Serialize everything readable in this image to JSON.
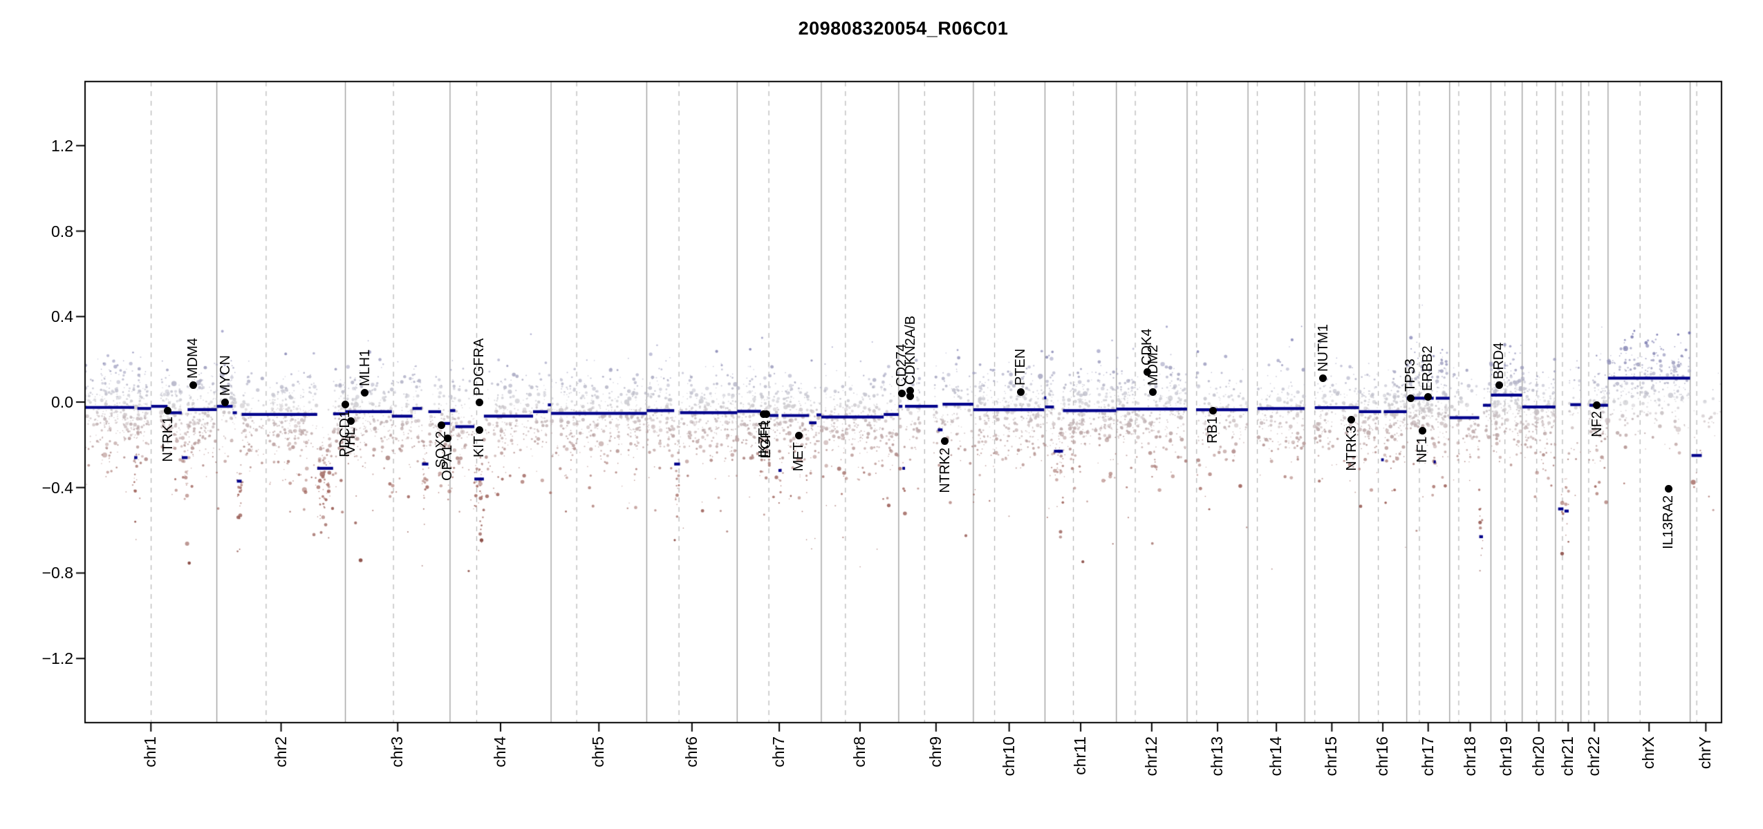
{
  "title": "209808320054_R06C01",
  "colors": {
    "background": "#ffffff",
    "frame": "#000000",
    "segment": "#00008B",
    "gene_dot": "#000000",
    "chromosome_boundary": "#9b9b9b",
    "centromere_line": "#b4b4b4",
    "point_positive": "#7070ac",
    "point_neutral": "#cbcbd0",
    "point_negative": "#9e5f57",
    "point_deep_negative": "#7d372f",
    "text": "#000000"
  },
  "chart_data": {
    "type": "scatter",
    "title": "209808320054_R06C01",
    "xlabel": "",
    "ylabel": "",
    "ylim": [
      -1.5,
      1.5
    ],
    "yticks": [
      -1.2,
      -0.8,
      -0.4,
      0.0,
      0.4,
      0.8,
      1.2
    ],
    "ytick_labels": [
      "−1.2",
      "−0.8",
      "−0.4",
      "0.0",
      "0.4",
      "0.8",
      "1.2"
    ],
    "grid": "solid gray vertical lines at chromosome boundaries, dashed gray vertical lines at centromeres, no horizontal gridlines",
    "legend_position": "none",
    "x_axis_note": "genomic position; tick at each chromosome midpoint, label rotated 90deg",
    "chromosomes": [
      {
        "name": "chr1",
        "length_mb": 249.25,
        "centromere_mb": 125.0,
        "point_density": 1.25
      },
      {
        "name": "chr2",
        "length_mb": 243.2,
        "centromere_mb": 93.3,
        "point_density": 0.95
      },
      {
        "name": "chr3",
        "length_mb": 198.02,
        "centromere_mb": 91.0,
        "point_density": 0.9
      },
      {
        "name": "chr4",
        "length_mb": 191.15,
        "centromere_mb": 50.4,
        "point_density": 0.8
      },
      {
        "name": "chr5",
        "length_mb": 180.92,
        "centromere_mb": 48.4,
        "point_density": 0.85
      },
      {
        "name": "chr6",
        "length_mb": 171.12,
        "centromere_mb": 61.0,
        "point_density": 0.95
      },
      {
        "name": "chr7",
        "length_mb": 159.14,
        "centromere_mb": 59.9,
        "point_density": 1.0
      },
      {
        "name": "chr8",
        "length_mb": 146.36,
        "centromere_mb": 45.6,
        "point_density": 0.85
      },
      {
        "name": "chr9",
        "length_mb": 141.21,
        "centromere_mb": 49.0,
        "point_density": 0.75
      },
      {
        "name": "chr10",
        "length_mb": 135.53,
        "centromere_mb": 40.2,
        "point_density": 1.0
      },
      {
        "name": "chr11",
        "length_mb": 135.01,
        "centromere_mb": 53.7,
        "point_density": 1.15
      },
      {
        "name": "chr12",
        "length_mb": 133.85,
        "centromere_mb": 35.8,
        "point_density": 1.0
      },
      {
        "name": "chr13",
        "length_mb": 115.17,
        "centromere_mb": 17.9,
        "point_density": 0.6
      },
      {
        "name": "chr14",
        "length_mb": 107.35,
        "centromere_mb": 17.6,
        "point_density": 0.75
      },
      {
        "name": "chr15",
        "length_mb": 102.53,
        "centromere_mb": 19.0,
        "point_density": 0.75
      },
      {
        "name": "chr16",
        "length_mb": 90.35,
        "centromere_mb": 36.6,
        "point_density": 1.2
      },
      {
        "name": "chr17",
        "length_mb": 81.2,
        "centromere_mb": 24.0,
        "point_density": 1.5
      },
      {
        "name": "chr18",
        "length_mb": 78.08,
        "centromere_mb": 17.2,
        "point_density": 0.55
      },
      {
        "name": "chr19",
        "length_mb": 59.13,
        "centromere_mb": 26.5,
        "point_density": 1.6
      },
      {
        "name": "chr20",
        "length_mb": 63.03,
        "centromere_mb": 27.5,
        "point_density": 1.1
      },
      {
        "name": "chr21",
        "length_mb": 48.13,
        "centromere_mb": 13.2,
        "point_density": 0.55
      },
      {
        "name": "chr22",
        "length_mb": 51.3,
        "centromere_mb": 14.7,
        "point_density": 1.2
      },
      {
        "name": "chrX",
        "length_mb": 155.27,
        "centromere_mb": 60.6,
        "point_density": 0.8
      },
      {
        "name": "chrY",
        "length_mb": 59.37,
        "centromere_mb": 12.5,
        "point_density": 0.2
      }
    ],
    "segments": [
      {
        "chr": "chr1",
        "start_mb": 0,
        "end_mb": 93,
        "value": -0.025
      },
      {
        "chr": "chr1",
        "start_mb": 93,
        "end_mb": 99,
        "value": -0.26
      },
      {
        "chr": "chr1",
        "start_mb": 99,
        "end_mb": 125,
        "value": -0.03
      },
      {
        "chr": "chr1",
        "start_mb": 125,
        "end_mb": 156,
        "value": -0.02
      },
      {
        "chr": "chr1",
        "start_mb": 156,
        "end_mb": 183,
        "value": -0.05
      },
      {
        "chr": "chr1",
        "start_mb": 183,
        "end_mb": 194,
        "value": -0.26
      },
      {
        "chr": "chr1",
        "start_mb": 194,
        "end_mb": 249.2,
        "value": -0.035
      },
      {
        "chr": "chr2",
        "start_mb": 0,
        "end_mb": 30,
        "value": -0.02
      },
      {
        "chr": "chr2",
        "start_mb": 30,
        "end_mb": 38,
        "value": -0.05
      },
      {
        "chr": "chr2",
        "start_mb": 38,
        "end_mb": 47,
        "value": -0.37
      },
      {
        "chr": "chr2",
        "start_mb": 47,
        "end_mb": 190,
        "value": -0.058
      },
      {
        "chr": "chr2",
        "start_mb": 190,
        "end_mb": 220,
        "value": -0.31
      },
      {
        "chr": "chr2",
        "start_mb": 220,
        "end_mb": 243.2,
        "value": -0.055
      },
      {
        "chr": "chr3",
        "start_mb": 0,
        "end_mb": 88,
        "value": -0.045
      },
      {
        "chr": "chr3",
        "start_mb": 88,
        "end_mb": 127,
        "value": -0.066
      },
      {
        "chr": "chr3",
        "start_mb": 127,
        "end_mb": 145,
        "value": -0.03
      },
      {
        "chr": "chr3",
        "start_mb": 145,
        "end_mb": 157,
        "value": -0.29
      },
      {
        "chr": "chr3",
        "start_mb": 157,
        "end_mb": 181,
        "value": -0.045
      },
      {
        "chr": "chr3",
        "start_mb": 181,
        "end_mb": 198,
        "value": -0.1
      },
      {
        "chr": "chr4",
        "start_mb": 0,
        "end_mb": 10,
        "value": -0.04
      },
      {
        "chr": "chr4",
        "start_mb": 10,
        "end_mb": 46,
        "value": -0.115
      },
      {
        "chr": "chr4",
        "start_mb": 46,
        "end_mb": 64,
        "value": -0.36
      },
      {
        "chr": "chr4",
        "start_mb": 64,
        "end_mb": 157,
        "value": -0.066
      },
      {
        "chr": "chr4",
        "start_mb": 157,
        "end_mb": 185,
        "value": -0.045
      },
      {
        "chr": "chr4",
        "start_mb": 185,
        "end_mb": 191.1,
        "value": -0.013
      },
      {
        "chr": "chr5",
        "start_mb": 0,
        "end_mb": 180.9,
        "value": -0.053
      },
      {
        "chr": "chr6",
        "start_mb": 0,
        "end_mb": 52,
        "value": -0.04
      },
      {
        "chr": "chr6",
        "start_mb": 52,
        "end_mb": 63,
        "value": -0.29
      },
      {
        "chr": "chr6",
        "start_mb": 63,
        "end_mb": 171.1,
        "value": -0.05
      },
      {
        "chr": "chr7",
        "start_mb": 0,
        "end_mb": 45,
        "value": -0.043
      },
      {
        "chr": "chr7",
        "start_mb": 45,
        "end_mb": 61,
        "value": -0.055
      },
      {
        "chr": "chr7",
        "start_mb": 61,
        "end_mb": 78,
        "value": -0.063
      },
      {
        "chr": "chr7",
        "start_mb": 78,
        "end_mb": 84,
        "value": -0.32
      },
      {
        "chr": "chr7",
        "start_mb": 84,
        "end_mb": 136,
        "value": -0.063
      },
      {
        "chr": "chr7",
        "start_mb": 136,
        "end_mb": 150,
        "value": -0.097
      },
      {
        "chr": "chr7",
        "start_mb": 150,
        "end_mb": 159.1,
        "value": -0.06
      },
      {
        "chr": "chr8",
        "start_mb": 0,
        "end_mb": 118,
        "value": -0.07
      },
      {
        "chr": "chr8",
        "start_mb": 118,
        "end_mb": 146.3,
        "value": -0.058
      },
      {
        "chr": "chr9",
        "start_mb": 0,
        "end_mb": 7,
        "value": -0.02
      },
      {
        "chr": "chr9",
        "start_mb": 7,
        "end_mb": 12,
        "value": -0.31
      },
      {
        "chr": "chr9",
        "start_mb": 12,
        "end_mb": 74,
        "value": -0.02
      },
      {
        "chr": "chr9",
        "start_mb": 74,
        "end_mb": 83,
        "value": -0.13
      },
      {
        "chr": "chr9",
        "start_mb": 83,
        "end_mb": 141.2,
        "value": -0.01
      },
      {
        "chr": "chr10",
        "start_mb": 0,
        "end_mb": 134,
        "value": -0.036
      },
      {
        "chr": "chr10",
        "start_mb": 134,
        "end_mb": 135.5,
        "value": 0.02
      },
      {
        "chr": "chr11",
        "start_mb": 0,
        "end_mb": 17,
        "value": -0.023
      },
      {
        "chr": "chr11",
        "start_mb": 17,
        "end_mb": 34,
        "value": -0.23
      },
      {
        "chr": "chr11",
        "start_mb": 34,
        "end_mb": 135,
        "value": -0.04
      },
      {
        "chr": "chr12",
        "start_mb": 0,
        "end_mb": 133.8,
        "value": -0.033
      },
      {
        "chr": "chr13",
        "start_mb": 17,
        "end_mb": 115.1,
        "value": -0.036
      },
      {
        "chr": "chr14",
        "start_mb": 18,
        "end_mb": 107.3,
        "value": -0.03
      },
      {
        "chr": "chr15",
        "start_mb": 19,
        "end_mb": 102.5,
        "value": -0.026
      },
      {
        "chr": "chr16",
        "start_mb": 0,
        "end_mb": 42,
        "value": -0.045
      },
      {
        "chr": "chr16",
        "start_mb": 42,
        "end_mb": 47,
        "value": -0.27
      },
      {
        "chr": "chr16",
        "start_mb": 47,
        "end_mb": 90.3,
        "value": -0.045
      },
      {
        "chr": "chr17",
        "start_mb": 0,
        "end_mb": 51,
        "value": 0.018
      },
      {
        "chr": "chr17",
        "start_mb": 51,
        "end_mb": 55,
        "value": -0.28
      },
      {
        "chr": "chr17",
        "start_mb": 55,
        "end_mb": 81.2,
        "value": 0.018
      },
      {
        "chr": "chr18",
        "start_mb": 0,
        "end_mb": 56,
        "value": -0.073
      },
      {
        "chr": "chr18",
        "start_mb": 56,
        "end_mb": 63,
        "value": -0.63
      },
      {
        "chr": "chr18",
        "start_mb": 63,
        "end_mb": 78.0,
        "value": -0.015
      },
      {
        "chr": "chr19",
        "start_mb": 0,
        "end_mb": 59.1,
        "value": 0.033
      },
      {
        "chr": "chr20",
        "start_mb": 0,
        "end_mb": 63.0,
        "value": -0.023
      },
      {
        "chr": "chr21",
        "start_mb": 5,
        "end_mb": 15,
        "value": -0.5
      },
      {
        "chr": "chr21",
        "start_mb": 17,
        "end_mb": 25,
        "value": -0.51
      },
      {
        "chr": "chr21",
        "start_mb": 28,
        "end_mb": 48.1,
        "value": -0.012
      },
      {
        "chr": "chr22",
        "start_mb": 16,
        "end_mb": 51.3,
        "value": -0.015
      },
      {
        "chr": "chrX",
        "start_mb": 0,
        "end_mb": 155.2,
        "value": 0.112
      },
      {
        "chr": "chrY",
        "start_mb": 2.6,
        "end_mb": 22,
        "value": -0.25
      }
    ],
    "genes": [
      {
        "name": "NTRK1",
        "chr": "chr1",
        "pos_mb": 156.8,
        "value": -0.04,
        "label_side": "below"
      },
      {
        "name": "MDM4",
        "chr": "chr1",
        "pos_mb": 204.5,
        "value": 0.08,
        "label_side": "above"
      },
      {
        "name": "MYCN",
        "chr": "chr2",
        "pos_mb": 16.1,
        "value": 0.0,
        "label_side": "above"
      },
      {
        "name": "PDCD1",
        "chr": "chr2",
        "pos_mb": 242.8,
        "value": -0.01,
        "label_side": "below"
      },
      {
        "name": "VHL",
        "chr": "chr3",
        "pos_mb": 10.2,
        "value": -0.09,
        "label_side": "below"
      },
      {
        "name": "MLH1",
        "chr": "chr3",
        "pos_mb": 37.0,
        "value": 0.045,
        "label_side": "above"
      },
      {
        "name": "SOX2",
        "chr": "chr3",
        "pos_mb": 181.4,
        "value": -0.107,
        "label_side": "below"
      },
      {
        "name": "OPA1",
        "chr": "chr3",
        "pos_mb": 193.3,
        "value": -0.17,
        "label_side": "below"
      },
      {
        "name": "PDGFRA",
        "chr": "chr4",
        "pos_mb": 55.1,
        "value": 0.0,
        "label_side": "above"
      },
      {
        "name": "KIT",
        "chr": "chr4",
        "pos_mb": 55.5,
        "value": -0.13,
        "label_side": "below"
      },
      {
        "name": "IKZF1",
        "chr": "chr7",
        "pos_mb": 50.4,
        "value": -0.055,
        "label_side": "below"
      },
      {
        "name": "EGFR",
        "chr": "chr7",
        "pos_mb": 55.1,
        "value": -0.055,
        "label_side": "below"
      },
      {
        "name": "MET",
        "chr": "chr7",
        "pos_mb": 116.3,
        "value": -0.158,
        "label_side": "below"
      },
      {
        "name": "CD274",
        "chr": "chr9",
        "pos_mb": 5.45,
        "value": 0.042,
        "label_side": "above"
      },
      {
        "name": "CDKN2A/B",
        "chr": "chr9",
        "pos_mb": 21.95,
        "value": 0.052,
        "label_side": "above",
        "extra_dot_value": 0.026
      },
      {
        "name": "NTRK2",
        "chr": "chr9",
        "pos_mb": 87.3,
        "value": -0.184,
        "label_side": "below"
      },
      {
        "name": "PTEN",
        "chr": "chr10",
        "pos_mb": 89.6,
        "value": 0.048,
        "label_side": "above"
      },
      {
        "name": "CDK4",
        "chr": "chr12",
        "pos_mb": 58.1,
        "value": 0.142,
        "label_side": "above"
      },
      {
        "name": "MDM2",
        "chr": "chr12",
        "pos_mb": 69.2,
        "value": 0.048,
        "label_side": "above"
      },
      {
        "name": "RB1",
        "chr": "chr13",
        "pos_mb": 48.9,
        "value": -0.039,
        "label_side": "below"
      },
      {
        "name": "NUTM1",
        "chr": "chr15",
        "pos_mb": 34.6,
        "value": 0.113,
        "label_side": "above"
      },
      {
        "name": "NTRK3",
        "chr": "chr15",
        "pos_mb": 88.4,
        "value": -0.081,
        "label_side": "below"
      },
      {
        "name": "TP53",
        "chr": "chr17",
        "pos_mb": 7.6,
        "value": 0.019,
        "label_side": "above"
      },
      {
        "name": "NF1",
        "chr": "chr17",
        "pos_mb": 29.4,
        "value": -0.133,
        "label_side": "below"
      },
      {
        "name": "ERBB2",
        "chr": "chr17",
        "pos_mb": 39.7,
        "value": 0.023,
        "label_side": "above"
      },
      {
        "name": "BRD4",
        "chr": "chr19",
        "pos_mb": 15.35,
        "value": 0.078,
        "label_side": "above"
      },
      {
        "name": "NF2",
        "chr": "chr22",
        "pos_mb": 30.0,
        "value": -0.013,
        "label_side": "below"
      },
      {
        "name": "IL13RA2",
        "chr": "chrX",
        "pos_mb": 114.2,
        "value": -0.407,
        "label_side": "below"
      }
    ],
    "scatter": {
      "description": "methylation-array CNV probe bins; color graded blue-purple (gain) / gray (neutral) / brown-red (loss); pseudo-random regeneration",
      "seed": 1234567,
      "base_points_per_mb": 2.55,
      "sd": 0.1,
      "lower_tail_prob": 0.28,
      "upper_tail_prob": 0.06,
      "q_start_mb": {
        "chr13": 17,
        "chr14": 17.5,
        "chr15": 18.5,
        "chr21": 11,
        "chr22": 14.5,
        "chrY": 2.5
      },
      "gaps": [
        {
          "chr": "chr1",
          "start_mb": 121,
          "end_mb": 142
        },
        {
          "chr": "chr2",
          "start_mb": 89,
          "end_mb": 96
        },
        {
          "chr": "chr9",
          "start_mb": 40,
          "end_mb": 66
        },
        {
          "chr": "chr16",
          "start_mb": 35,
          "end_mb": 45
        },
        {
          "chr": "chrX",
          "start_mb": 58,
          "end_mb": 62
        }
      ]
    }
  }
}
